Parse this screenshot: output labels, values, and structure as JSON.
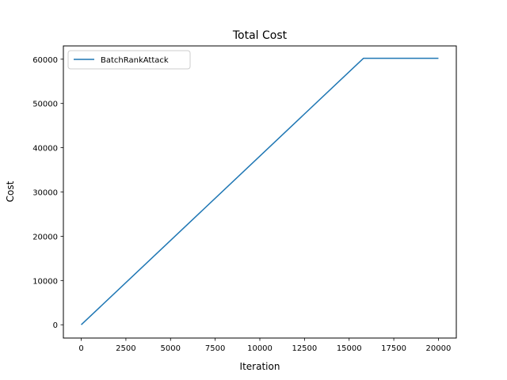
{
  "chart_data": {
    "type": "line",
    "title": "Total Cost",
    "xlabel": "Iteration",
    "ylabel": "Cost",
    "xlim": [
      -1000,
      21000
    ],
    "ylim": [
      -3000,
      63000
    ],
    "xticks": [
      0,
      2500,
      5000,
      7500,
      10000,
      12500,
      15000,
      17500,
      20000
    ],
    "yticks": [
      0,
      10000,
      20000,
      30000,
      40000,
      50000,
      60000
    ],
    "legend_position": "top-left",
    "grid": false,
    "series": [
      {
        "name": "BatchRankAttack",
        "color": "#1f77b4",
        "x": [
          0,
          15800,
          20000
        ],
        "y": [
          0,
          60200,
          60200
        ]
      }
    ]
  }
}
